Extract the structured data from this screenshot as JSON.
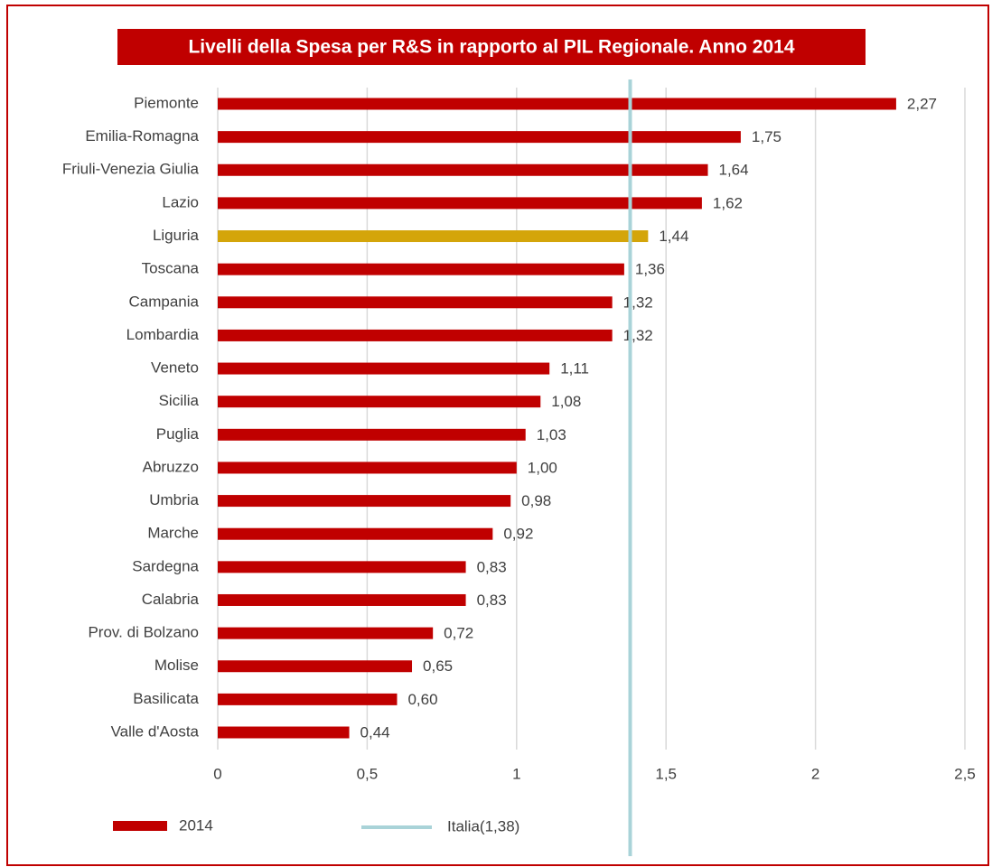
{
  "chart_data": {
    "type": "hbar",
    "title": "Livelli della Spesa per R&S in rapporto al PIL Regionale. Anno 2014",
    "categories": [
      "Piemonte",
      "Emilia-Romagna",
      "Friuli-Venezia Giulia",
      "Lazio",
      "Liguria",
      "Toscana",
      "Campania",
      "Lombardia",
      "Veneto",
      "Sicilia",
      "Puglia",
      "Abruzzo",
      "Umbria",
      "Marche",
      "Sardegna",
      "Calabria",
      "Prov. di Bolzano",
      "Molise",
      "Basilicata",
      "Valle d'Aosta"
    ],
    "series": [
      {
        "name": "2014",
        "color": "#c00000",
        "colors": [
          "#c00000",
          "#c00000",
          "#c00000",
          "#c00000",
          "#d4a50a",
          "#c00000",
          "#c00000",
          "#c00000",
          "#c00000",
          "#c00000",
          "#c00000",
          "#c00000",
          "#c00000",
          "#c00000",
          "#c00000",
          "#c00000",
          "#c00000",
          "#c00000",
          "#c00000",
          "#c00000"
        ],
        "values": [
          2.27,
          1.75,
          1.64,
          1.62,
          1.44,
          1.36,
          1.32,
          1.32,
          1.11,
          1.08,
          1.03,
          1.0,
          0.98,
          0.92,
          0.83,
          0.83,
          0.72,
          0.65,
          0.6,
          0.44
        ],
        "value_labels": [
          "2,27",
          "1,75",
          "1,64",
          "1,62",
          "1,44",
          "1,36",
          "1,32",
          "1,32",
          "1,11",
          "1,08",
          "1,03",
          "1,00",
          "0,98",
          "0,92",
          "0,83",
          "0,83",
          "0,72",
          "0,65",
          "0,60",
          "0,44"
        ]
      }
    ],
    "reference_line": {
      "name": "Italia(1,38)",
      "value": 1.38,
      "color": "#a9d3d8"
    },
    "xlim": [
      0,
      2.5
    ],
    "xticks": [
      0,
      {
        "value": 0.5,
        "label": "0,5"
      },
      1,
      {
        "value": 1.5,
        "label": "1,5"
      },
      2,
      {
        "value": 2.5,
        "label": "2,5"
      }
    ],
    "grid": true
  }
}
